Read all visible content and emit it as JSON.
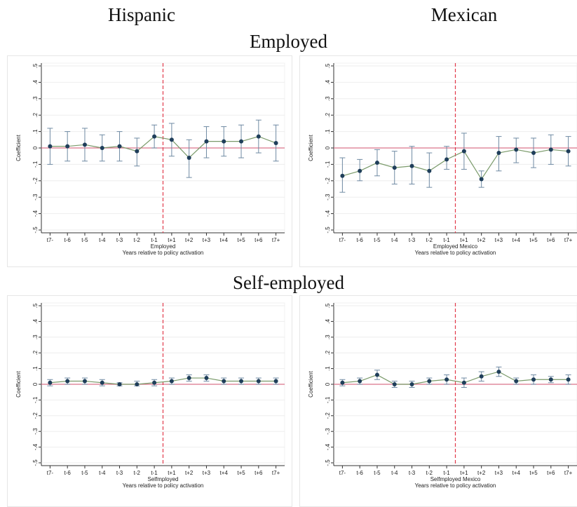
{
  "titles": {
    "col_left": "Hispanic",
    "col_right": "Mexican",
    "row_top": "Employed",
    "row_bottom": "Self-employed"
  },
  "colors": {
    "zero_line": "#d9738a",
    "policy_line": "#e23a4b",
    "series_line": "#7a9a6a",
    "marker": "#1f3e5a",
    "ci": "#6f8aa3",
    "axis": "#333333"
  },
  "chart_data": [
    {
      "type": "line",
      "panel": "employed-hispanic",
      "title": "",
      "xlabel": "Employed",
      "xlabel2": "Years relative to policy activation",
      "ylabel": "Coefficient",
      "ylim": [
        -0.5,
        0.5
      ],
      "yticks": [
        ".5",
        ".4",
        ".3",
        ".2",
        ".1",
        "0",
        "-.1",
        "-.2",
        "-.3",
        "-.4",
        "-.5"
      ],
      "categories": [
        "t7-",
        "t-6",
        "t-5",
        "t-4",
        "t-3",
        "t-2",
        "t-1",
        "t+1",
        "t+2",
        "t+3",
        "t+4",
        "t+5",
        "t+6",
        "t7+"
      ],
      "policy_between": [
        "t-1",
        "t+1"
      ],
      "values": [
        0.01,
        0.01,
        0.02,
        0.0,
        0.01,
        -0.02,
        0.07,
        0.05,
        -0.06,
        0.04,
        0.04,
        0.04,
        0.07,
        0.03
      ],
      "ci_low": [
        -0.1,
        -0.08,
        -0.08,
        -0.08,
        -0.08,
        -0.11,
        0.0,
        -0.05,
        -0.18,
        -0.06,
        -0.05,
        -0.06,
        -0.03,
        -0.08
      ],
      "ci_high": [
        0.12,
        0.1,
        0.12,
        0.08,
        0.1,
        0.06,
        0.14,
        0.15,
        0.05,
        0.13,
        0.13,
        0.14,
        0.17,
        0.14
      ],
      "grid": true
    },
    {
      "type": "line",
      "panel": "employed-mexican",
      "title": "",
      "xlabel": "Employed Mexico",
      "xlabel2": "Years relative to policy activation",
      "ylabel": "Coefficient",
      "ylim": [
        -0.5,
        0.5
      ],
      "yticks": [
        ".5",
        ".4",
        ".3",
        ".2",
        ".1",
        "0",
        "-.1",
        "-.2",
        "-.3",
        "-.4",
        "-.5"
      ],
      "categories": [
        "t7-",
        "t-6",
        "t-5",
        "t-4",
        "t-3",
        "t-2",
        "t-1",
        "t+1",
        "t+2",
        "t+3",
        "t+4",
        "t+5",
        "t+6",
        "t7+"
      ],
      "policy_between": [
        "t-1",
        "t+1"
      ],
      "values": [
        -0.17,
        -0.14,
        -0.09,
        -0.12,
        -0.11,
        -0.14,
        -0.07,
        -0.02,
        -0.19,
        -0.03,
        -0.01,
        -0.03,
        -0.01,
        -0.02
      ],
      "ci_low": [
        -0.27,
        -0.2,
        -0.17,
        -0.22,
        -0.22,
        -0.24,
        -0.13,
        -0.13,
        -0.24,
        -0.14,
        -0.09,
        -0.12,
        -0.1,
        -0.11
      ],
      "ci_high": [
        -0.06,
        -0.07,
        -0.01,
        -0.02,
        0.01,
        -0.03,
        0.01,
        0.09,
        -0.14,
        0.07,
        0.06,
        0.06,
        0.08,
        0.07
      ],
      "grid": true
    },
    {
      "type": "line",
      "panel": "selfemployed-hispanic",
      "title": "",
      "xlabel": "Selfmployed",
      "xlabel2": "Years relative to policy activation",
      "ylabel": "Coefficient",
      "ylim": [
        -0.5,
        0.5
      ],
      "yticks": [
        ".5",
        ".4",
        ".3",
        ".2",
        ".1",
        "0",
        "-.1",
        "-.2",
        "-.3",
        "-.4",
        "-.5"
      ],
      "categories": [
        "t7-",
        "t-6",
        "t-5",
        "t-4",
        "t-3",
        "t-2",
        "t-1",
        "t+1",
        "t+2",
        "t+3",
        "t+4",
        "t+5",
        "t+6",
        "t7+"
      ],
      "policy_between": [
        "t-1",
        "t+1"
      ],
      "values": [
        0.01,
        0.02,
        0.02,
        0.01,
        0.0,
        0.0,
        0.01,
        0.02,
        0.04,
        0.04,
        0.02,
        0.02,
        0.02,
        0.02
      ],
      "ci_low": [
        -0.01,
        0.0,
        0.0,
        -0.01,
        -0.01,
        -0.01,
        -0.01,
        0.0,
        0.02,
        0.02,
        0.0,
        0.0,
        0.0,
        0.0
      ],
      "ci_high": [
        0.03,
        0.04,
        0.04,
        0.03,
        0.01,
        0.02,
        0.03,
        0.04,
        0.06,
        0.06,
        0.04,
        0.04,
        0.04,
        0.04
      ],
      "grid": true
    },
    {
      "type": "line",
      "panel": "selfemployed-mexican",
      "title": "",
      "xlabel": "Selfmployed Mexico",
      "xlabel2": "Years relative to policy activation",
      "ylabel": "Coefficient",
      "ylim": [
        -0.5,
        0.5
      ],
      "yticks": [
        ".5",
        ".4",
        ".3",
        ".2",
        ".1",
        "0",
        "-.1",
        "-.2",
        "-.3",
        "-.4",
        "-.5"
      ],
      "categories": [
        "t7-",
        "t-6",
        "t-5",
        "t-4",
        "t-3",
        "t-2",
        "t-1",
        "t+1",
        "t+2",
        "t+3",
        "t+4",
        "t+5",
        "t+6",
        "t7+"
      ],
      "policy_between": [
        "t-1",
        "t+1"
      ],
      "values": [
        0.01,
        0.02,
        0.06,
        0.0,
        0.0,
        0.02,
        0.03,
        0.01,
        0.05,
        0.08,
        0.02,
        0.03,
        0.03,
        0.03
      ],
      "ci_low": [
        -0.01,
        0.0,
        0.03,
        -0.02,
        -0.02,
        0.0,
        0.0,
        -0.02,
        0.02,
        0.05,
        0.0,
        0.0,
        0.01,
        0.0
      ],
      "ci_high": [
        0.03,
        0.04,
        0.09,
        0.02,
        0.02,
        0.04,
        0.06,
        0.04,
        0.08,
        0.11,
        0.04,
        0.06,
        0.05,
        0.06
      ],
      "grid": true
    }
  ]
}
